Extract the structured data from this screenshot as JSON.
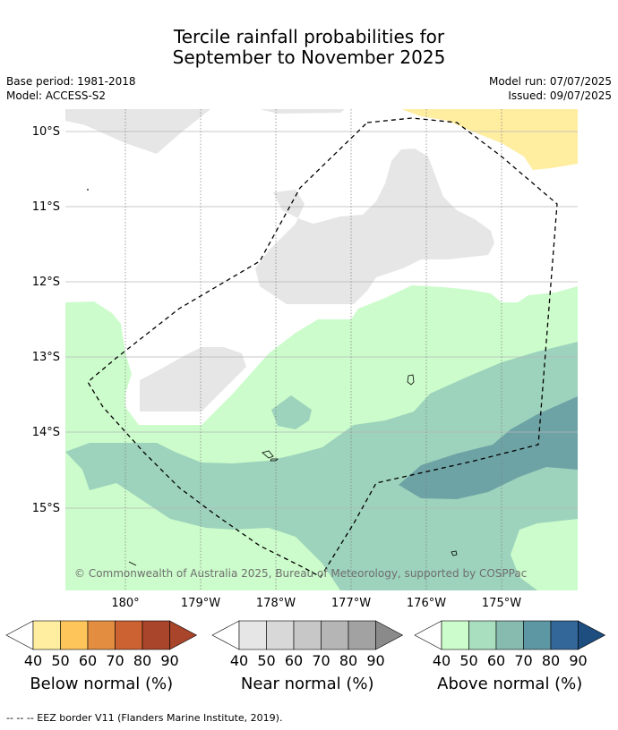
{
  "title_line1": "Tercile rainfall probabilities for",
  "title_line2": "September to November 2025",
  "base_period": "Base period: 1981-2018",
  "model": "Model: ACCESS-S2",
  "model_run": "Model run: 07/07/2025",
  "issued": "Issued: 09/07/2025",
  "credit": "© Commonwealth of Australia 2025, Bureau of Meteorology, supported by COSPPac",
  "lat_labels": [
    "10°S",
    "11°S",
    "12°S",
    "13°S",
    "14°S",
    "15°S"
  ],
  "lon_labels": [
    "180°",
    "179°W",
    "178°W",
    "177°W",
    "176°W",
    "175°W"
  ],
  "colorbars": [
    {
      "title": "Below normal (%)",
      "ticks": [
        "40",
        "50",
        "60",
        "70",
        "80",
        "90"
      ],
      "colors": [
        "#ffeda0",
        "#fec65a",
        "#e38d41",
        "#cc6132",
        "#a8452a",
        "#a8452a"
      ]
    },
    {
      "title": "Near normal (%)",
      "ticks": [
        "40",
        "50",
        "60",
        "70",
        "80",
        "90"
      ],
      "colors": [
        "#e6e6e6",
        "#d8d8d8",
        "#c7c7c7",
        "#b5b5b5",
        "#a2a2a2",
        "#8a8a8a"
      ]
    },
    {
      "title": "Above normal (%)",
      "ticks": [
        "40",
        "50",
        "60",
        "70",
        "80",
        "90"
      ],
      "colors": [
        "#ccfccb",
        "#a9dfbf",
        "#87bbb0",
        "#5e97a4",
        "#336699",
        "#1d4e7f"
      ]
    }
  ],
  "eez_note": "--  --  -- EEZ border V11 (Flanders Marine Institute, 2019)."
}
